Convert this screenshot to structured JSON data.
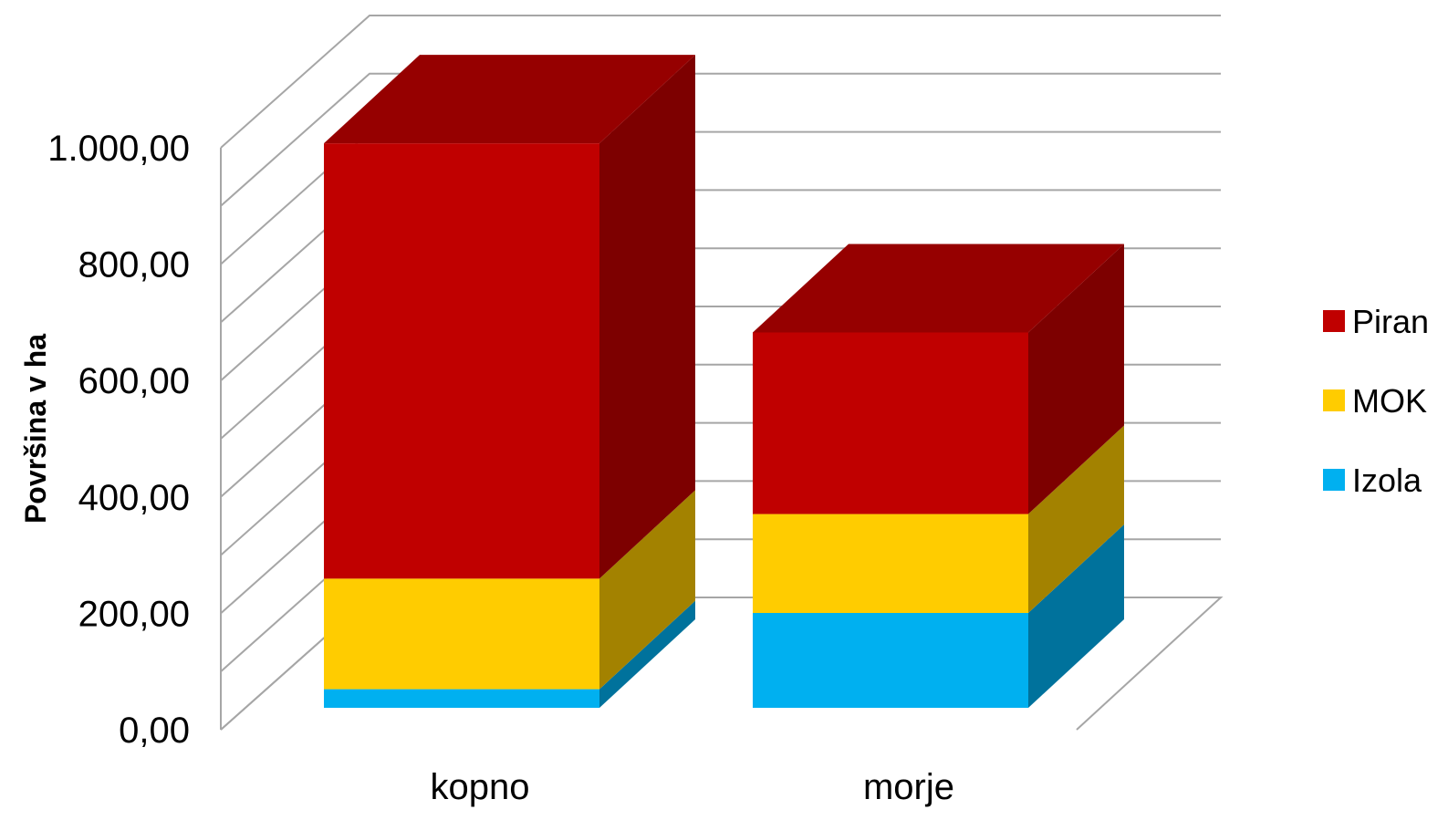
{
  "chart_data": {
    "type": "bar",
    "stacked": true,
    "three_d": true,
    "categories": [
      "kopno",
      "morje"
    ],
    "series": [
      {
        "name": "Izola",
        "values": [
          32,
          163
        ],
        "color": "#00B0F0",
        "side_color": "#00729C"
      },
      {
        "name": "MOK",
        "values": [
          190,
          170
        ],
        "color": "#FFCC00",
        "side_color": "#A38200"
      },
      {
        "name": "Piran",
        "values": [
          748,
          312
        ],
        "color": "#C00000",
        "side_color": "#7D0000",
        "top_color": "#960000"
      }
    ],
    "ylabel": "Površina v ha",
    "ylim": [
      0,
      1000
    ],
    "yticks": [
      "0,00",
      "200,00",
      "400,00",
      "600,00",
      "800,00",
      "1.000,00"
    ],
    "grid": true,
    "legend": "right"
  }
}
